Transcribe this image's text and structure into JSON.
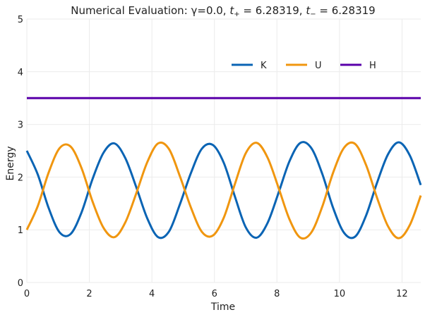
{
  "chart_data": {
    "type": "line",
    "title": "Numerical Evaluation: γ=0.0, t₊ = 6.28319, t₋ = 6.28319",
    "title_parts": {
      "prefix": "Numerical Evaluation: γ=0.0, ",
      "t_plus_symbol": "t",
      "plus_sub": "+",
      "t_plus_value": " = 6.28319, ",
      "t_minus_symbol": "t",
      "minus_sub": "−",
      "t_minus_value": " = 6.28319"
    },
    "xlabel": "Time",
    "ylabel": "Energy",
    "xlim": [
      0,
      12.6
    ],
    "ylim": [
      0,
      5
    ],
    "x_ticks": [
      0,
      2,
      4,
      6,
      8,
      10,
      12
    ],
    "y_ticks": [
      0,
      1,
      2,
      3,
      4,
      5
    ],
    "grid": true,
    "legend_position": "top-right",
    "series": [
      {
        "name": "K",
        "color": "#0a64b4",
        "x": [
          0.0,
          0.35,
          0.7,
          1.05,
          1.4,
          1.75,
          2.1,
          2.45,
          2.8,
          3.15,
          3.5,
          3.85,
          4.2,
          4.55,
          4.9,
          5.25,
          5.6,
          5.95,
          6.3,
          6.65,
          7.0,
          7.35,
          7.7,
          8.05,
          8.4,
          8.75,
          9.1,
          9.45,
          9.8,
          10.15,
          10.5,
          10.85,
          11.2,
          11.55,
          11.9,
          12.25,
          12.6
        ],
        "y": [
          2.5,
          2.05,
          1.41,
          0.95,
          0.92,
          1.33,
          1.96,
          2.46,
          2.64,
          2.36,
          1.81,
          1.22,
          0.86,
          0.97,
          1.49,
          2.08,
          2.54,
          2.61,
          2.27,
          1.64,
          1.05,
          0.85,
          1.13,
          1.7,
          2.3,
          2.65,
          2.55,
          2.06,
          1.41,
          0.94,
          0.87,
          1.27,
          1.89,
          2.43,
          2.66,
          2.41,
          1.85
        ]
      },
      {
        "name": "U",
        "color": "#f0960f",
        "x": [
          0.0,
          0.35,
          0.7,
          1.05,
          1.4,
          1.75,
          2.1,
          2.45,
          2.8,
          3.15,
          3.5,
          3.85,
          4.2,
          4.55,
          4.9,
          5.25,
          5.6,
          5.95,
          6.3,
          6.65,
          7.0,
          7.35,
          7.7,
          8.05,
          8.4,
          8.75,
          9.1,
          9.45,
          9.8,
          10.15,
          10.5,
          10.85,
          11.2,
          11.55,
          11.9,
          12.25,
          12.6
        ],
        "y": [
          1.0,
          1.45,
          2.09,
          2.55,
          2.58,
          2.17,
          1.54,
          1.04,
          0.86,
          1.14,
          1.69,
          2.28,
          2.64,
          2.53,
          2.01,
          1.42,
          0.96,
          0.89,
          1.23,
          1.86,
          2.45,
          2.65,
          2.37,
          1.8,
          1.2,
          0.85,
          0.95,
          1.44,
          2.09,
          2.56,
          2.63,
          2.23,
          1.61,
          1.07,
          0.84,
          1.09,
          1.65
        ]
      },
      {
        "name": "H",
        "color": "#5a00aa",
        "x": [
          0.0,
          12.6
        ],
        "y": [
          3.5,
          3.5
        ]
      }
    ]
  }
}
